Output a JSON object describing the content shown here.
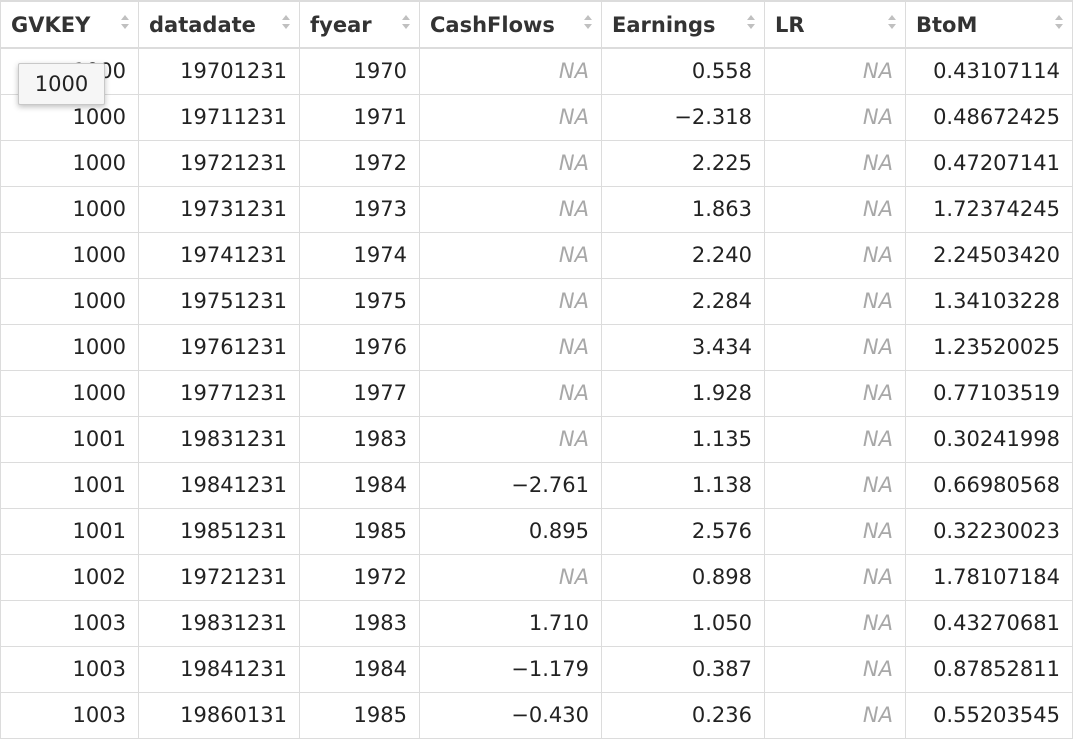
{
  "columns": [
    {
      "key": "gvkey",
      "label": "GVKEY"
    },
    {
      "key": "datadate",
      "label": "datadate"
    },
    {
      "key": "fyear",
      "label": "fyear"
    },
    {
      "key": "cashflows",
      "label": "CashFlows"
    },
    {
      "key": "earnings",
      "label": "Earnings"
    },
    {
      "key": "lr",
      "label": "LR"
    },
    {
      "key": "btom",
      "label": "BtoM"
    }
  ],
  "rows": [
    [
      "1000",
      "19701231",
      "1970",
      "NA",
      "0.558",
      "NA",
      "0.43107114"
    ],
    [
      "1000",
      "19711231",
      "1971",
      "NA",
      "-2.318",
      "NA",
      "0.48672425"
    ],
    [
      "1000",
      "19721231",
      "1972",
      "NA",
      "2.225",
      "NA",
      "0.47207141"
    ],
    [
      "1000",
      "19731231",
      "1973",
      "NA",
      "1.863",
      "NA",
      "1.72374245"
    ],
    [
      "1000",
      "19741231",
      "1974",
      "NA",
      "2.240",
      "NA",
      "2.24503420"
    ],
    [
      "1000",
      "19751231",
      "1975",
      "NA",
      "2.284",
      "NA",
      "1.34103228"
    ],
    [
      "1000",
      "19761231",
      "1976",
      "NA",
      "3.434",
      "NA",
      "1.23520025"
    ],
    [
      "1000",
      "19771231",
      "1977",
      "NA",
      "1.928",
      "NA",
      "0.77103519"
    ],
    [
      "1001",
      "19831231",
      "1983",
      "NA",
      "1.135",
      "NA",
      "0.30241998"
    ],
    [
      "1001",
      "19841231",
      "1984",
      "-2.761",
      "1.138",
      "NA",
      "0.66980568"
    ],
    [
      "1001",
      "19851231",
      "1985",
      "0.895",
      "2.576",
      "NA",
      "0.32230023"
    ],
    [
      "1002",
      "19721231",
      "1972",
      "NA",
      "0.898",
      "NA",
      "1.78107184"
    ],
    [
      "1003",
      "19831231",
      "1983",
      "1.710",
      "1.050",
      "NA",
      "0.43270681"
    ],
    [
      "1003",
      "19841231",
      "1984",
      "-1.179",
      "0.387",
      "NA",
      "0.87852811"
    ],
    [
      "1003",
      "19860131",
      "1985",
      "-0.430",
      "0.236",
      "NA",
      "0.55203545"
    ]
  ],
  "tooltip": {
    "text": "1000"
  },
  "colors": {
    "na_text": "#a8a8a8",
    "border": "#dcdcdc",
    "sort_arrows": "#c0c0c0"
  }
}
